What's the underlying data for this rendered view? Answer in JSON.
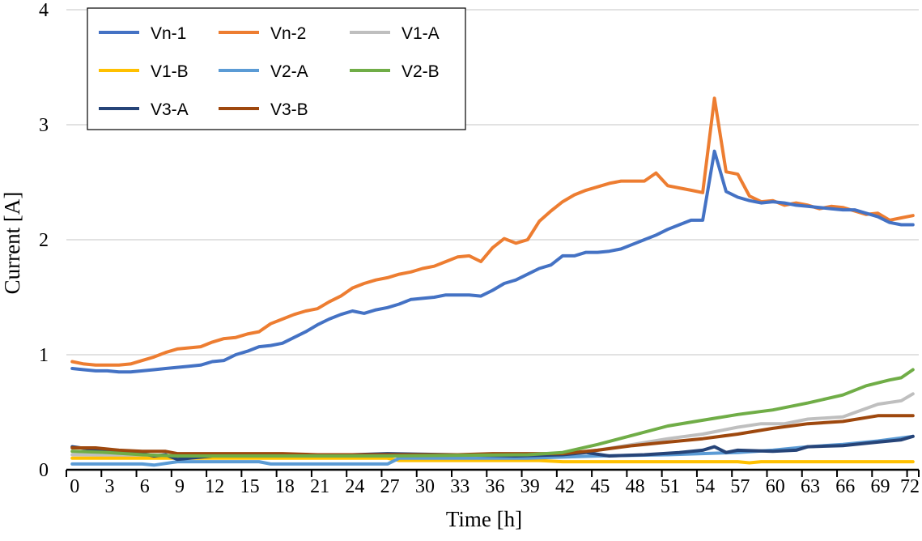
{
  "chart_data": {
    "type": "line",
    "title": "",
    "xlabel": "Time [h]",
    "ylabel": "Current [A]",
    "ylim": [
      0,
      4
    ],
    "yticks": [
      "0",
      "1",
      "2",
      "3",
      "4"
    ],
    "xlim": [
      0,
      72
    ],
    "xticks": [
      "0",
      "3",
      "6",
      "9",
      "12",
      "15",
      "18",
      "21",
      "24",
      "27",
      "30",
      "33",
      "36",
      "39",
      "42",
      "45",
      "48",
      "51",
      "54",
      "57",
      "60",
      "63",
      "66",
      "69",
      "72"
    ],
    "grid": "horizontal",
    "legend_position": "top-left",
    "series": [
      {
        "name": "Vn-1",
        "color": "#4472C4",
        "values": [
          0.88,
          0.87,
          0.86,
          0.86,
          0.85,
          0.85,
          0.86,
          0.87,
          0.88,
          0.89,
          0.9,
          0.91,
          0.94,
          0.95,
          1.0,
          1.03,
          1.07,
          1.08,
          1.1,
          1.15,
          1.2,
          1.26,
          1.31,
          1.35,
          1.38,
          1.36,
          1.39,
          1.41,
          1.44,
          1.48,
          1.49,
          1.5,
          1.52,
          1.52,
          1.52,
          1.51,
          1.56,
          1.62,
          1.65,
          1.7,
          1.75,
          1.78,
          1.86,
          1.86,
          1.89,
          1.89,
          1.9,
          1.92,
          1.96,
          2.0,
          2.04,
          2.09,
          2.13,
          2.17,
          2.17,
          2.77,
          2.42,
          2.37,
          2.34,
          2.32,
          2.33,
          2.32,
          2.3,
          2.29,
          2.28,
          2.27,
          2.26,
          2.26,
          2.23,
          2.2,
          2.15,
          2.13,
          2.13
        ]
      },
      {
        "name": "Vn-2",
        "color": "#ED7D31",
        "values": [
          0.94,
          0.92,
          0.91,
          0.91,
          0.91,
          0.92,
          0.95,
          0.98,
          1.02,
          1.05,
          1.06,
          1.07,
          1.11,
          1.14,
          1.15,
          1.18,
          1.2,
          1.27,
          1.31,
          1.35,
          1.38,
          1.4,
          1.46,
          1.51,
          1.58,
          1.62,
          1.65,
          1.67,
          1.7,
          1.72,
          1.75,
          1.77,
          1.81,
          1.85,
          1.86,
          1.81,
          1.93,
          2.01,
          1.97,
          2.0,
          2.16,
          2.25,
          2.33,
          2.39,
          2.43,
          2.46,
          2.49,
          2.51,
          2.51,
          2.51,
          2.58,
          2.47,
          2.45,
          2.43,
          2.41,
          3.23,
          2.59,
          2.57,
          2.38,
          2.33,
          2.34,
          2.3,
          2.32,
          2.3,
          2.27,
          2.29,
          2.28,
          2.25,
          2.22,
          2.23,
          2.17,
          2.19,
          2.21
        ]
      },
      {
        "name": "V1-A",
        "color": "#BFBFBF",
        "points": [
          [
            0,
            0.13
          ],
          [
            9,
            0.12
          ],
          [
            27,
            0.12
          ],
          [
            42,
            0.13
          ],
          [
            45,
            0.17
          ],
          [
            48,
            0.22
          ],
          [
            51,
            0.27
          ],
          [
            54,
            0.31
          ],
          [
            57,
            0.37
          ],
          [
            59,
            0.4
          ],
          [
            61,
            0.4
          ],
          [
            63,
            0.44
          ],
          [
            66,
            0.46
          ],
          [
            69,
            0.57
          ],
          [
            71,
            0.6
          ],
          [
            72,
            0.66
          ]
        ]
      },
      {
        "name": "V1-B",
        "color": "#FFC000",
        "points": [
          [
            0,
            0.1
          ],
          [
            9,
            0.1
          ],
          [
            27,
            0.1
          ],
          [
            28,
            0.08
          ],
          [
            40,
            0.08
          ],
          [
            42,
            0.07
          ],
          [
            48,
            0.07
          ],
          [
            51,
            0.07
          ],
          [
            57,
            0.07
          ],
          [
            58,
            0.06
          ],
          [
            59,
            0.07
          ],
          [
            72,
            0.07
          ]
        ]
      },
      {
        "name": "V2-A",
        "color": "#5B9BD5",
        "points": [
          [
            0,
            0.05
          ],
          [
            6,
            0.05
          ],
          [
            7,
            0.04
          ],
          [
            9,
            0.07
          ],
          [
            16,
            0.07
          ],
          [
            17,
            0.05
          ],
          [
            27,
            0.05
          ],
          [
            28,
            0.1
          ],
          [
            39,
            0.1
          ],
          [
            42,
            0.11
          ],
          [
            45,
            0.12
          ],
          [
            51,
            0.13
          ],
          [
            57,
            0.15
          ],
          [
            60,
            0.17
          ],
          [
            63,
            0.2
          ],
          [
            66,
            0.22
          ],
          [
            69,
            0.25
          ],
          [
            72,
            0.29
          ]
        ]
      },
      {
        "name": "V2-B",
        "color": "#70AD47",
        "points": [
          [
            0,
            0.16
          ],
          [
            3,
            0.15
          ],
          [
            6,
            0.13
          ],
          [
            9,
            0.12
          ],
          [
            27,
            0.12
          ],
          [
            39,
            0.13
          ],
          [
            42,
            0.15
          ],
          [
            45,
            0.22
          ],
          [
            48,
            0.3
          ],
          [
            51,
            0.38
          ],
          [
            54,
            0.43
          ],
          [
            57,
            0.48
          ],
          [
            60,
            0.52
          ],
          [
            63,
            0.58
          ],
          [
            66,
            0.65
          ],
          [
            68,
            0.73
          ],
          [
            70,
            0.78
          ],
          [
            71,
            0.8
          ],
          [
            72,
            0.87
          ]
        ]
      },
      {
        "name": "V3-A",
        "color": "#264478",
        "points": [
          [
            0,
            0.2
          ],
          [
            3,
            0.16
          ],
          [
            6,
            0.14
          ],
          [
            7,
            0.12
          ],
          [
            8,
            0.13
          ],
          [
            9,
            0.09
          ],
          [
            12,
            0.12
          ],
          [
            24,
            0.13
          ],
          [
            27,
            0.14
          ],
          [
            33,
            0.13
          ],
          [
            38,
            0.12
          ],
          [
            42,
            0.13
          ],
          [
            44,
            0.15
          ],
          [
            46,
            0.12
          ],
          [
            49,
            0.13
          ],
          [
            52,
            0.15
          ],
          [
            54,
            0.17
          ],
          [
            55,
            0.2
          ],
          [
            56,
            0.15
          ],
          [
            57,
            0.17
          ],
          [
            60,
            0.16
          ],
          [
            62,
            0.17
          ],
          [
            63,
            0.2
          ],
          [
            66,
            0.21
          ],
          [
            69,
            0.24
          ],
          [
            71,
            0.26
          ],
          [
            72,
            0.29
          ]
        ]
      },
      {
        "name": "V3-B",
        "color": "#9E480E",
        "points": [
          [
            0,
            0.19
          ],
          [
            2,
            0.19
          ],
          [
            4,
            0.17
          ],
          [
            6,
            0.16
          ],
          [
            8,
            0.16
          ],
          [
            9,
            0.14
          ],
          [
            18,
            0.14
          ],
          [
            21,
            0.13
          ],
          [
            33,
            0.13
          ],
          [
            36,
            0.14
          ],
          [
            42,
            0.14
          ],
          [
            45,
            0.17
          ],
          [
            48,
            0.21
          ],
          [
            51,
            0.24
          ],
          [
            54,
            0.27
          ],
          [
            57,
            0.31
          ],
          [
            60,
            0.36
          ],
          [
            63,
            0.4
          ],
          [
            66,
            0.42
          ],
          [
            69,
            0.47
          ],
          [
            71,
            0.47
          ],
          [
            72,
            0.47
          ]
        ]
      }
    ]
  }
}
